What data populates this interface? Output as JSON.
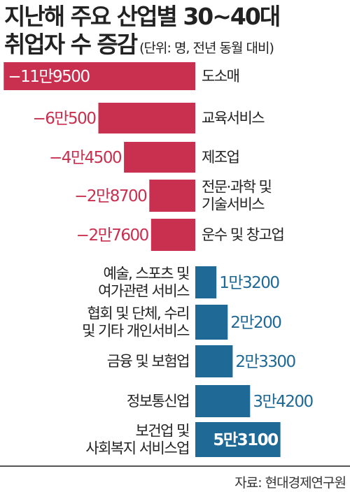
{
  "title": {
    "line1": "지난해 주요 산업별 30~40대",
    "line2": "취업자 수 증감",
    "unit": "(단위: 명, 전년 동월 대비)"
  },
  "source": "자료: 현대경제연구원",
  "colors": {
    "negative": "#c9304f",
    "positive": "#1f6996",
    "negative_label": "#c9304f",
    "positive_label": "#1f6996"
  },
  "chart_data": {
    "type": "bar",
    "orientation": "horizontal",
    "categories": [
      [
        "도소매"
      ],
      [
        "교육서비스"
      ],
      [
        "제조업"
      ],
      [
        "전문·과학 및",
        "기술서비스"
      ],
      [
        "운수 및 창고업"
      ],
      [
        "예술, 스포츠 및",
        "여가관련 서비스"
      ],
      [
        "협회 및 단체, 수리",
        "및 기타 개인서비스"
      ],
      [
        "금융 및 보험업"
      ],
      [
        "정보통신업"
      ],
      [
        "보건업 및",
        "사회복지 서비스업"
      ]
    ],
    "values": [
      -119500,
      -60500,
      -44500,
      -28700,
      -27600,
      13200,
      20200,
      23300,
      34200,
      53100
    ],
    "value_labels": [
      "−11만9500",
      "−6만500",
      "−4만4500",
      "−2만8700",
      "−2만7600",
      "1만3200",
      "2만200",
      "2만3300",
      "3만4200",
      "5만3100"
    ]
  }
}
